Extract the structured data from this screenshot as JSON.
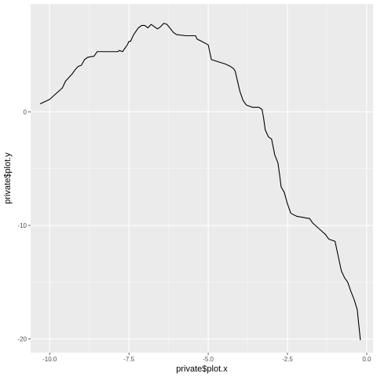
{
  "chart_data": {
    "type": "line",
    "title": "",
    "xlabel": "private$plot.x",
    "ylabel": "private$plot.y",
    "xlim": [
      -10.6,
      0.2
    ],
    "ylim": [
      -21.2,
      9.5
    ],
    "x_ticks": [
      -10.0,
      -7.5,
      -5.0,
      -2.5,
      0.0
    ],
    "x_tick_labels": [
      "-10.0",
      "-7.5",
      "-5.0",
      "-2.5",
      "0.0"
    ],
    "y_ticks": [
      0,
      -10,
      -20
    ],
    "y_tick_labels": [
      "0",
      "-10",
      "-20"
    ],
    "grid": true,
    "colors": {
      "panel": "#ebebeb",
      "grid_major": "#ffffff",
      "grid_minor": "#f5f5f5",
      "line": "#000000"
    },
    "series": [
      {
        "name": "private$plot.y",
        "x": [
          -10.3,
          -10.0,
          -9.8,
          -9.6,
          -9.5,
          -9.4,
          -9.3,
          -9.2,
          -9.1,
          -9.0,
          -8.9,
          -8.8,
          -8.6,
          -8.5,
          -8.35,
          -8.25,
          -8.2,
          -8.0,
          -7.85,
          -7.8,
          -7.7,
          -7.6,
          -7.55,
          -7.5,
          -7.45,
          -7.35,
          -7.2,
          -7.1,
          -7.0,
          -6.9,
          -6.8,
          -6.7,
          -6.6,
          -6.5,
          -6.4,
          -6.3,
          -6.1,
          -6.0,
          -5.7,
          -5.4,
          -5.35,
          -5.2,
          -5.0,
          -4.9,
          -4.45,
          -4.3,
          -4.2,
          -4.15,
          -4.0,
          -3.9,
          -3.8,
          -3.6,
          -3.4,
          -3.3,
          -3.25,
          -3.2,
          -3.1,
          -3.05,
          -3.0,
          -2.9,
          -2.8,
          -2.75,
          -2.7,
          -2.6,
          -2.5,
          -2.4,
          -2.35,
          -2.2,
          -1.8,
          -1.7,
          -1.5,
          -1.3,
          -1.2,
          -1.0,
          -0.9,
          -0.8,
          -0.7,
          -0.6,
          -0.5,
          -0.4,
          -0.3,
          -0.2
        ],
        "values": [
          0.7,
          1.1,
          1.6,
          2.1,
          2.7,
          3.0,
          3.3,
          3.7,
          4.0,
          4.1,
          4.6,
          4.8,
          4.9,
          5.3,
          5.3,
          5.3,
          5.3,
          5.3,
          5.3,
          5.4,
          5.3,
          5.7,
          5.9,
          6.2,
          6.2,
          6.8,
          7.4,
          7.6,
          7.6,
          7.4,
          7.7,
          7.5,
          7.3,
          7.5,
          7.8,
          7.7,
          7.0,
          6.8,
          6.7,
          6.7,
          6.4,
          6.2,
          5.9,
          4.6,
          4.2,
          4.0,
          3.8,
          3.6,
          1.8,
          1.0,
          0.6,
          0.4,
          0.4,
          0.2,
          -0.6,
          -1.6,
          -2.2,
          -2.3,
          -2.4,
          -3.8,
          -4.5,
          -5.5,
          -6.6,
          -7.1,
          -8.1,
          -8.9,
          -9.0,
          -9.2,
          -9.4,
          -9.8,
          -10.3,
          -10.8,
          -11.2,
          -11.4,
          -12.7,
          -14.0,
          -14.6,
          -15.0,
          -15.8,
          -16.5,
          -17.4,
          -20.1
        ]
      }
    ]
  }
}
